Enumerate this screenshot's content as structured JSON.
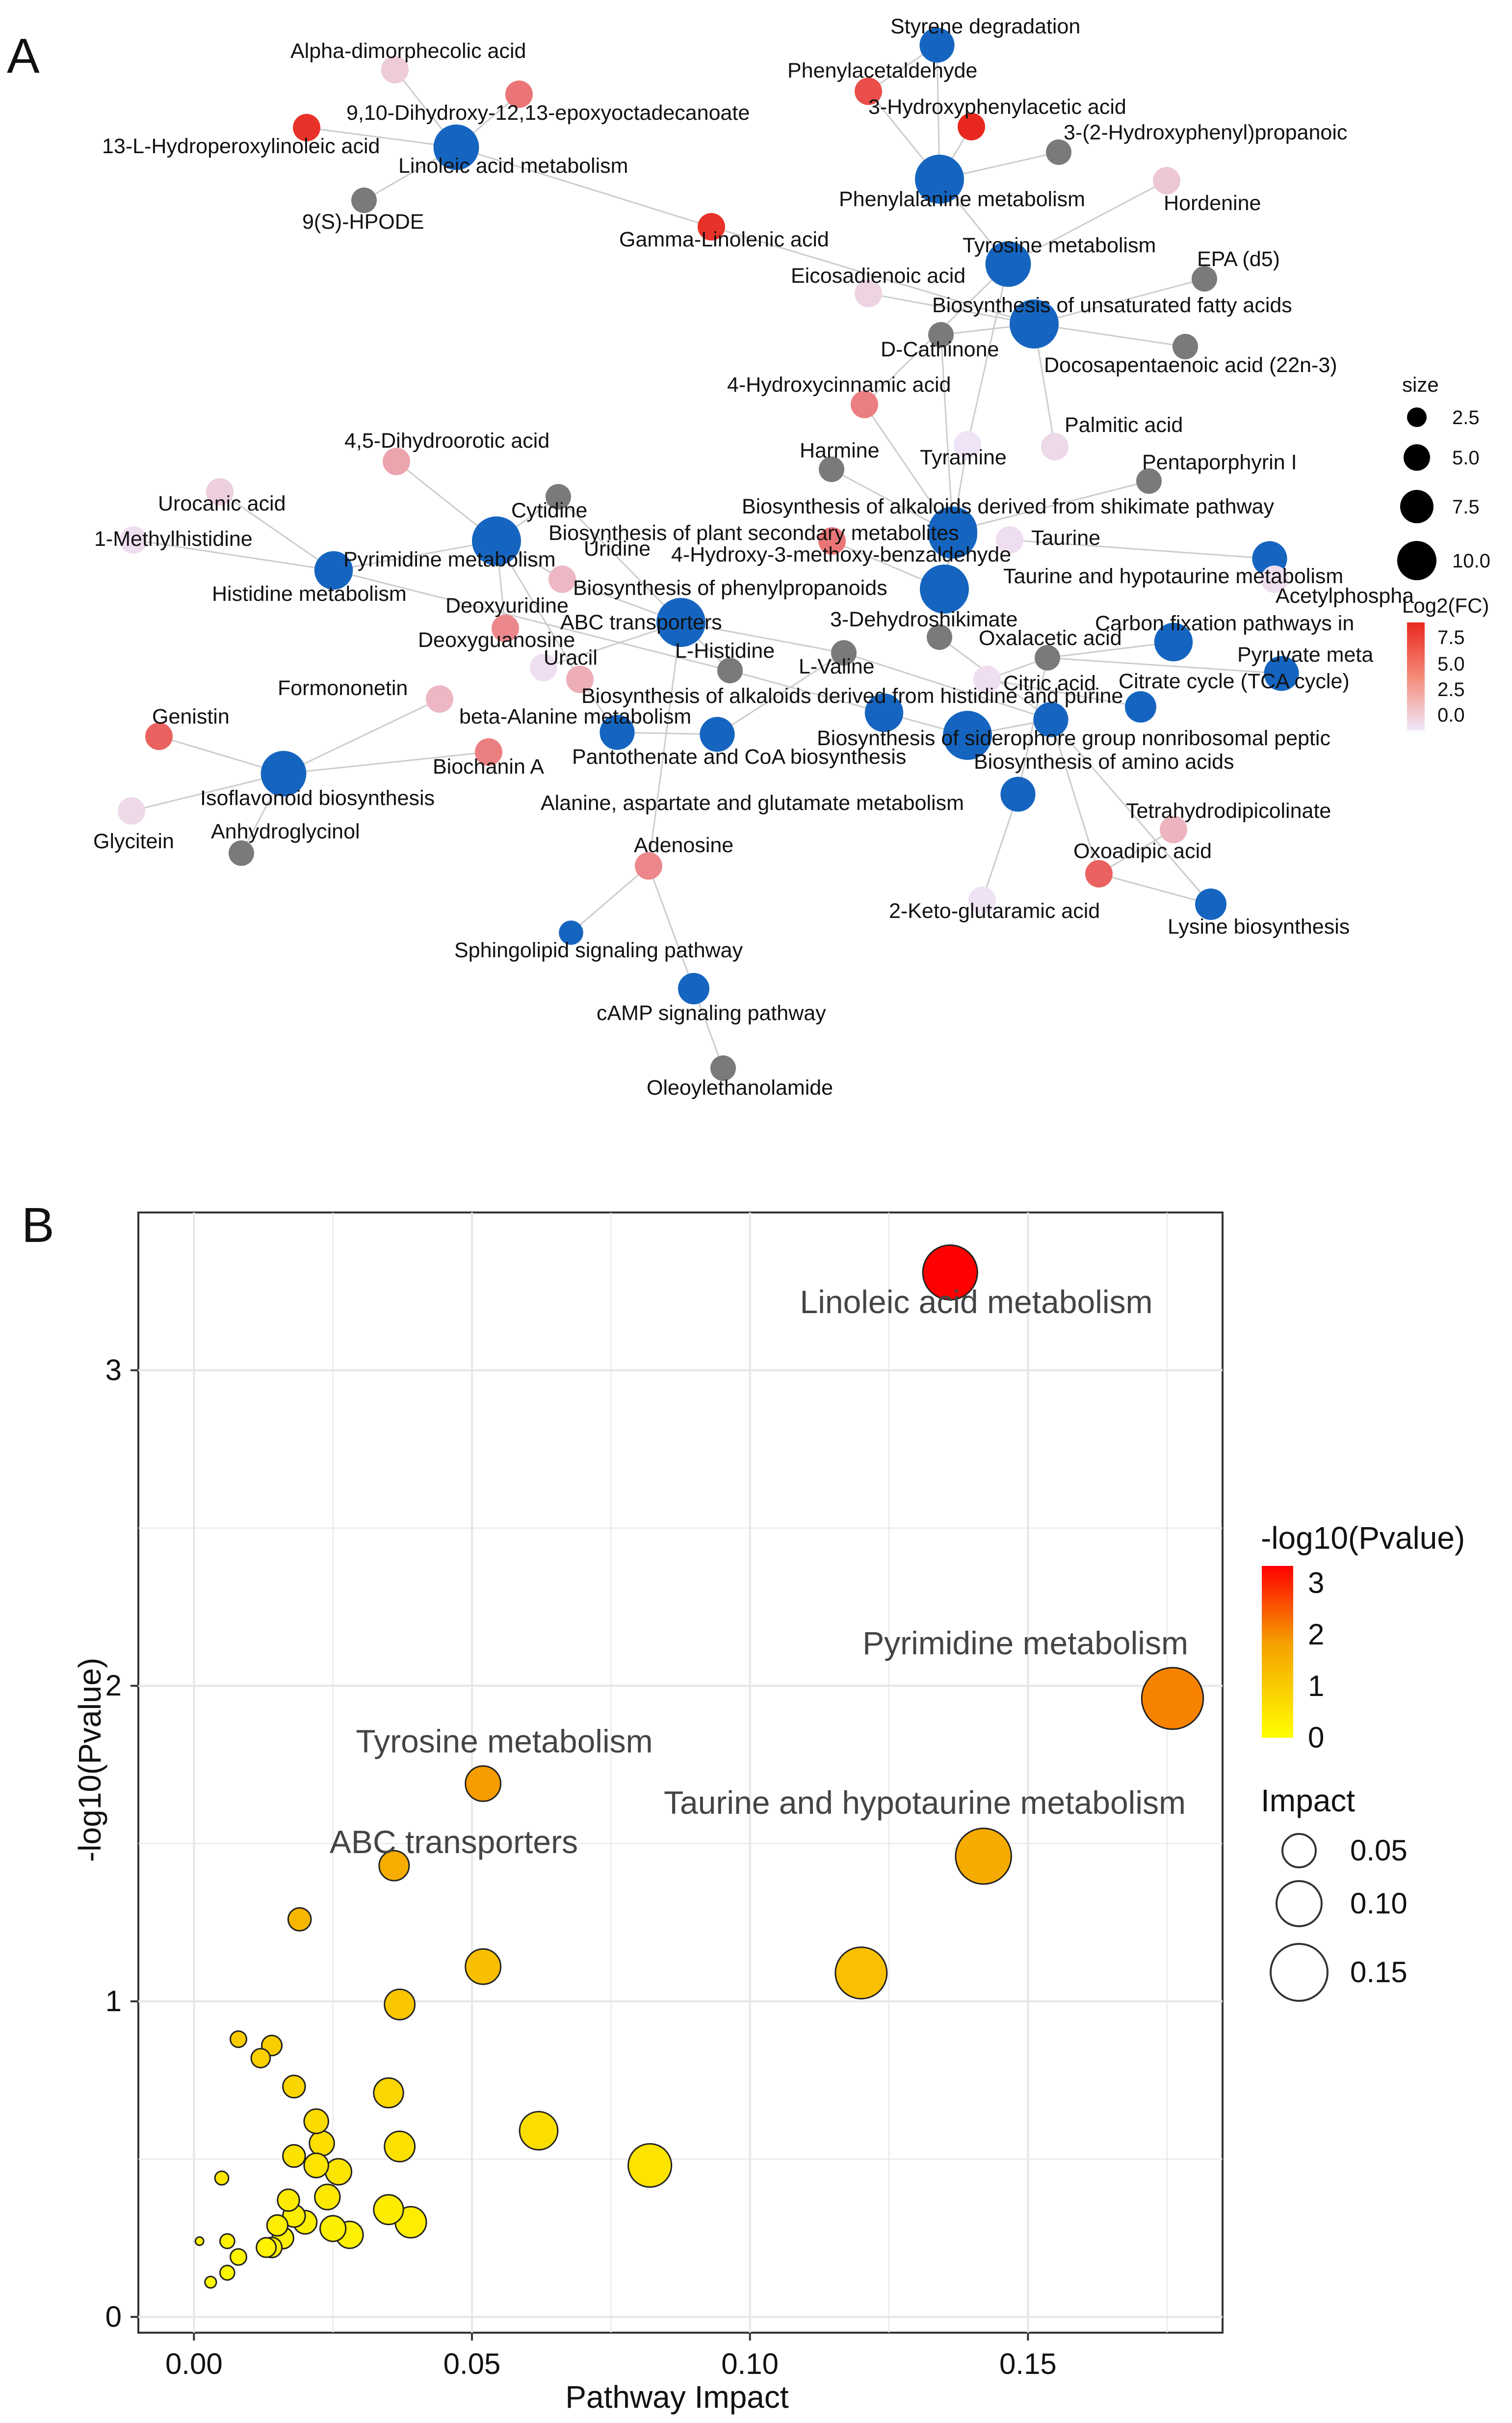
{
  "panel_a": {
    "letter": "A",
    "legend_size_title": "size",
    "legend_size_values": [
      "2.5",
      "5.0",
      "7.5",
      "10.0"
    ],
    "legend_color_title": "Log2(FC)",
    "legend_color_ticks": [
      "7.5",
      "5.0",
      "2.5",
      "0.0"
    ],
    "colors": {
      "pathway": "#1565C0",
      "neutral": "#7a7a7a",
      "fc_high": "#E8281E",
      "fc_low": "#EFE8FA",
      "edge": "#cccccc"
    },
    "nodes": [
      {
        "id": "styrene",
        "label": "Styrene degradation",
        "type": "pathway",
        "size": 6
      },
      {
        "id": "phenylacetaldehyde",
        "label": "Phenylacetaldehyde",
        "type": "metabolite",
        "fc": 7.5
      },
      {
        "id": "hydroxyphenylacetic",
        "label": "3-Hydroxyphenylacetic acid",
        "type": "metabolite",
        "fc": 9.5
      },
      {
        "id": "hydroxyphenylpropanoic",
        "label": "3-(2-Hydroxyphenyl)propanoic",
        "type": "neutral",
        "size": 4
      },
      {
        "id": "phenylalanine",
        "label": "Phenylalanine metabolism",
        "type": "pathway",
        "size": 10
      },
      {
        "id": "hordenine",
        "label": "Hordenine",
        "type": "metabolite",
        "fc": 1.2
      },
      {
        "id": "tyrosine",
        "label": "Tyrosine metabolism",
        "type": "pathway",
        "size": 9
      },
      {
        "id": "epa",
        "label": "EPA (d5)",
        "type": "neutral",
        "size": 4
      },
      {
        "id": "eicosadienoic",
        "label": "Eicosadienoic acid",
        "type": "metabolite",
        "fc": 0.6
      },
      {
        "id": "unsat_fa",
        "label": "Biosynthesis of unsaturated fatty acids",
        "type": "pathway",
        "size": 10
      },
      {
        "id": "dcathinone",
        "label": "D-Cathinone",
        "type": "neutral",
        "size": 4
      },
      {
        "id": "docosapentaenoic",
        "label": "Docosapentaenoic acid (22n-3)",
        "type": "neutral",
        "size": 4
      },
      {
        "id": "hydroxycinnamic",
        "label": "4-Hydroxycinnamic acid",
        "type": "metabolite",
        "fc": 5.0
      },
      {
        "id": "palmitic",
        "label": "Palmitic acid",
        "type": "metabolite",
        "fc": 0.3
      },
      {
        "id": "harmine",
        "label": "Harmine",
        "type": "neutral",
        "size": 4
      },
      {
        "id": "tyramine",
        "label": "Tyramine",
        "type": "metabolite",
        "fc": -0.3
      },
      {
        "id": "pentaporphyrin",
        "label": "Pentaporphyrin I",
        "type": "neutral",
        "size": 4
      },
      {
        "id": "alkaloid_shikimate",
        "label": "Biosynthesis of alkaloids derived from shikimate pathway",
        "type": "pathway",
        "size": 10
      },
      {
        "id": "taurine",
        "label": "Taurine",
        "type": "metabolite",
        "fc": 0.0
      },
      {
        "id": "taurine_metab",
        "label": "Taurine and hypotaurine metabolism",
        "type": "pathway",
        "size": 6
      },
      {
        "id": "acetylphosphate",
        "label": "Acetylphospha",
        "type": "metabolite",
        "fc": 0.0
      },
      {
        "id": "plant_secondary",
        "label": "Biosynthesis of plant secondary metabolites",
        "type": "pathway",
        "size": 10
      },
      {
        "id": "methoxybenzaldehyde",
        "label": "4-Hydroxy-3-methoxy-benzaldehyde",
        "type": "metabolite",
        "fc": 5.5
      },
      {
        "id": "phenylpropanoids",
        "label": "Biosynthesis of phenylpropanoids",
        "type": "pathway",
        "size": 10
      },
      {
        "id": "dehydroshikimate",
        "label": "3-Dehydroshikimate",
        "type": "neutral",
        "size": 4
      },
      {
        "id": "carbon_fixation",
        "label": "Carbon fixation pathways in",
        "type": "pathway",
        "size": 7
      },
      {
        "id": "oxalacetic",
        "label": "Oxalacetic acid",
        "type": "neutral",
        "size": 4
      },
      {
        "id": "pyruvate",
        "label": "Pyruvate meta",
        "type": "pathway",
        "size": 6
      },
      {
        "id": "citric",
        "label": "Citric acid",
        "type": "metabolite",
        "fc": 0.0
      },
      {
        "id": "tca",
        "label": "Citrate cycle (TCA cycle)",
        "type": "pathway",
        "size": 5
      },
      {
        "id": "alkaloid_histidine",
        "label": "Biosynthesis of alkaloids derived from histidine and purine",
        "type": "pathway",
        "size": 7
      },
      {
        "id": "siderophore",
        "label": "Biosynthesis of siderophore group nonribosomal peptic",
        "type": "pathway",
        "size": 10
      },
      {
        "id": "amino_acids",
        "label": "Biosynthesis of amino acids",
        "type": "pathway",
        "size": 6
      },
      {
        "id": "alanine",
        "label": "Alanine, aspartate and glutamate metabolism",
        "type": "pathway",
        "size": 6
      },
      {
        "id": "tetrahydrodipicolinate",
        "label": "Tetrahydrodipicolinate",
        "type": "metabolite",
        "fc": 2.2
      },
      {
        "id": "oxoadipic",
        "label": "Oxoadipic acid",
        "type": "metabolite",
        "fc": 6.5
      },
      {
        "id": "ketoglutaramic",
        "label": "2-Keto-glutaramic acid",
        "type": "metabolite",
        "fc": -0.2
      },
      {
        "id": "lysine",
        "label": "Lysine biosynthesis",
        "type": "pathway",
        "size": 5
      },
      {
        "id": "alpha_dimorphecolic",
        "label": "Alpha-dimorphecolic acid",
        "type": "metabolite",
        "fc": 1.0
      },
      {
        "id": "dihydroxy_epoxy",
        "label": "9,10-Dihydroxy-12,13-epoxyoctadecanoate",
        "type": "metabolite",
        "fc": 5.5
      },
      {
        "id": "hpode13",
        "label": "13-L-Hydroperoxylinoleic acid",
        "type": "metabolite",
        "fc": 9.0
      },
      {
        "id": "linoleic",
        "label": "Linoleic acid metabolism",
        "type": "pathway",
        "size": 9
      },
      {
        "id": "hpode9",
        "label": "9(S)-HPODE",
        "type": "neutral",
        "size": 4
      },
      {
        "id": "gamma_linolenic",
        "label": "Gamma-Linolenic acid",
        "type": "metabolite",
        "fc": 9.0
      },
      {
        "id": "dihydroorotic",
        "label": "4,5-Dihydroorotic acid",
        "type": "metabolite",
        "fc": 3.0
      },
      {
        "id": "urocanic",
        "label": "Urocanic acid",
        "type": "metabolite",
        "fc": 0.8
      },
      {
        "id": "cytidine",
        "label": "Cytidine",
        "type": "neutral",
        "size": 4
      },
      {
        "id": "methylhistidine",
        "label": "1-Methylhistidine",
        "type": "metabolite",
        "fc": 0.0
      },
      {
        "id": "pyrimidine",
        "label": "Pyrimidine metabolism",
        "type": "pathway",
        "size": 10
      },
      {
        "id": "uridine",
        "label": "Uridine",
        "type": "metabolite",
        "fc": 2.0
      },
      {
        "id": "histidine_metab",
        "label": "Histidine metabolism",
        "type": "pathway",
        "size": 7
      },
      {
        "id": "deoxyuridine",
        "label": "Deoxyuridine",
        "type": "metabolite",
        "fc": 4.5
      },
      {
        "id": "abc",
        "label": "ABC transporters",
        "type": "pathway",
        "size": 10
      },
      {
        "id": "deoxyguanosine",
        "label": "Deoxyguanosine",
        "type": "metabolite",
        "fc": 0.0
      },
      {
        "id": "uracil",
        "label": "Uracil",
        "type": "metabolite",
        "fc": 2.5
      },
      {
        "id": "lhistidine",
        "label": "L-Histidine",
        "type": "neutral",
        "size": 4
      },
      {
        "id": "lvaline",
        "label": "L-Valine",
        "type": "neutral",
        "size": 4
      },
      {
        "id": "formononetin",
        "label": "Formononetin",
        "type": "metabolite",
        "fc": 2.0
      },
      {
        "id": "beta_alanine",
        "label": "beta-Alanine metabolism",
        "type": "pathway",
        "size": 6
      },
      {
        "id": "pantothenate",
        "label": "Pantothenate and CoA biosynthesis",
        "type": "pathway",
        "size": 6
      },
      {
        "id": "genistin",
        "label": "Genistin",
        "type": "metabolite",
        "fc": 6.5
      },
      {
        "id": "biochanin",
        "label": "Biochanin A",
        "type": "metabolite",
        "fc": 5.0
      },
      {
        "id": "isoflavonoid",
        "label": "Isoflavonoid biosynthesis",
        "type": "pathway",
        "size": 9
      },
      {
        "id": "glycitein",
        "label": "Glycitein",
        "type": "metabolite",
        "fc": 0.3
      },
      {
        "id": "anhydroglycinol",
        "label": "Anhydroglycinol",
        "type": "neutral",
        "size": 4
      },
      {
        "id": "adenosine",
        "label": "Adenosine",
        "type": "metabolite",
        "fc": 4.5
      },
      {
        "id": "sphingolipid",
        "label": "Sphingolipid signaling pathway",
        "type": "pathway",
        "size": 3
      },
      {
        "id": "camp",
        "label": "cAMP signaling pathway",
        "type": "pathway",
        "size": 5
      },
      {
        "id": "oleoylethanolamide",
        "label": "Oleoylethanolamide",
        "type": "neutral",
        "size": 4
      }
    ],
    "edges": [
      [
        "styrene",
        "phenylacetaldehyde"
      ],
      [
        "styrene",
        "phenylalanine"
      ],
      [
        "phenylacetaldehyde",
        "phenylalanine"
      ],
      [
        "hydroxyphenylacetic",
        "phenylalanine"
      ],
      [
        "hydroxyphenylpropanoic",
        "phenylalanine"
      ],
      [
        "phenylalanine",
        "tyrosine"
      ],
      [
        "hordenine",
        "tyrosine"
      ],
      [
        "tyrosine",
        "tyramine"
      ],
      [
        "tyrosine",
        "hydroxycinnamic"
      ],
      [
        "eicosadienoic",
        "unsat_fa"
      ],
      [
        "epa",
        "unsat_fa"
      ],
      [
        "unsat_fa",
        "docosapentaenoic"
      ],
      [
        "unsat_fa",
        "palmitic"
      ],
      [
        "unsat_fa",
        "dcathinone"
      ],
      [
        "dcathinone",
        "alkaloid_shikimate"
      ],
      [
        "hydroxycinnamic",
        "plant_secondary"
      ],
      [
        "harmine",
        "plant_secondary"
      ],
      [
        "tyramine",
        "alkaloid_shikimate"
      ],
      [
        "pentaporphyrin",
        "alkaloid_shikimate"
      ],
      [
        "alkaloid_shikimate",
        "phenylpropanoids"
      ],
      [
        "taurine",
        "taurine_metab"
      ],
      [
        "taurine_metab",
        "acetylphosphate"
      ],
      [
        "methoxybenzaldehyde",
        "phenylpropanoids"
      ],
      [
        "plant_secondary",
        "phenylpropanoids"
      ],
      [
        "dehydroshikimate",
        "alkaloid_shikimate"
      ],
      [
        "dehydroshikimate",
        "amino_acids"
      ],
      [
        "carbon_fixation",
        "oxalacetic"
      ],
      [
        "pyruvate",
        "oxalacetic"
      ],
      [
        "oxalacetic",
        "citric"
      ],
      [
        "citric",
        "tca"
      ],
      [
        "oxalacetic",
        "alanine"
      ],
      [
        "alanine",
        "ketoglutaramic"
      ],
      [
        "amino_acids",
        "lvaline"
      ],
      [
        "amino_acids",
        "siderophore"
      ],
      [
        "siderophore",
        "alkaloid_histidine"
      ],
      [
        "lhistidine",
        "alkaloid_histidine"
      ],
      [
        "lhistidine",
        "histidine_metab"
      ],
      [
        "oxoadipic",
        "lysine"
      ],
      [
        "oxoadipic",
        "tetrahydrodipicolinate"
      ],
      [
        "oxoadipic",
        "amino_acids"
      ],
      [
        "lysine",
        "amino_acids"
      ],
      [
        "alpha_dimorphecolic",
        "linoleic"
      ],
      [
        "dihydroxy_epoxy",
        "linoleic"
      ],
      [
        "hpode13",
        "linoleic"
      ],
      [
        "hpode9",
        "linoleic"
      ],
      [
        "linoleic",
        "gamma_linolenic"
      ],
      [
        "dihydroorotic",
        "pyrimidine"
      ],
      [
        "cytidine",
        "pyrimidine"
      ],
      [
        "uridine",
        "pyrimidine"
      ],
      [
        "urocanic",
        "histidine_metab"
      ],
      [
        "methylhistidine",
        "histidine_metab"
      ],
      [
        "histidine_metab",
        "pyrimidine"
      ],
      [
        "deoxyuridine",
        "pyrimidine"
      ],
      [
        "deoxyguanosine",
        "abc"
      ],
      [
        "uracil",
        "pyrimidine"
      ],
      [
        "uracil",
        "beta_alanine"
      ],
      [
        "abc",
        "lhistidine"
      ],
      [
        "abc",
        "uridine"
      ],
      [
        "abc",
        "adenosine"
      ],
      [
        "abc",
        "lvaline"
      ],
      [
        "abc",
        "cytidine"
      ],
      [
        "lvaline",
        "pantothenate"
      ],
      [
        "beta_alanine",
        "pantothenate"
      ],
      [
        "formononetin",
        "isoflavonoid"
      ],
      [
        "genistin",
        "isoflavonoid"
      ],
      [
        "biochanin",
        "isoflavonoid"
      ],
      [
        "glycitein",
        "isoflavonoid"
      ],
      [
        "anhydroglycinol",
        "isoflavonoid"
      ],
      [
        "adenosine",
        "sphingolipid"
      ],
      [
        "adenosine",
        "camp"
      ],
      [
        "camp",
        "oleoylethanolamide"
      ],
      [
        "gamma_linolenic",
        "unsat_fa"
      ]
    ]
  },
  "panel_b": {
    "letter": "B",
    "chart_data": {
      "type": "scatter",
      "title": "",
      "xlabel": "Pathway Impact",
      "ylabel": "-log10(Pvalue)",
      "xlim": [
        -0.01,
        0.185
      ],
      "ylim": [
        -0.05,
        3.5
      ],
      "x_ticks": [
        "0.00",
        "0.05",
        "0.10",
        "0.15"
      ],
      "y_ticks": [
        "0",
        "1",
        "2",
        "3"
      ],
      "grid": true,
      "color_legend_title": "-log10(Pvalue)",
      "color_legend_ticks": [
        "3",
        "2",
        "1",
        "0"
      ],
      "size_legend_title": "Impact",
      "size_legend_values": [
        "0.05",
        "0.10",
        "0.15"
      ],
      "colors": {
        "low": "#FFFF00",
        "mid": "#F5A000",
        "high": "#FF0000"
      },
      "points": [
        {
          "impact": 0.136,
          "p": 3.31,
          "label": "Linoleic acid metabolism"
        },
        {
          "impact": 0.176,
          "p": 1.96,
          "label": "Pyrimidine metabolism"
        },
        {
          "impact": 0.052,
          "p": 1.69,
          "label": "Tyrosine metabolism"
        },
        {
          "impact": 0.142,
          "p": 1.46,
          "label": "Taurine and hypotaurine metabolism"
        },
        {
          "impact": 0.036,
          "p": 1.43,
          "label": "ABC transporters"
        },
        {
          "impact": 0.019,
          "p": 1.26,
          "label": ""
        },
        {
          "impact": 0.052,
          "p": 1.11,
          "label": ""
        },
        {
          "impact": 0.12,
          "p": 1.09,
          "label": ""
        },
        {
          "impact": 0.037,
          "p": 0.99,
          "label": ""
        },
        {
          "impact": 0.008,
          "p": 0.88,
          "label": ""
        },
        {
          "impact": 0.014,
          "p": 0.86,
          "label": ""
        },
        {
          "impact": 0.012,
          "p": 0.82,
          "label": ""
        },
        {
          "impact": 0.018,
          "p": 0.73,
          "label": ""
        },
        {
          "impact": 0.035,
          "p": 0.71,
          "label": ""
        },
        {
          "impact": 0.022,
          "p": 0.62,
          "label": ""
        },
        {
          "impact": 0.062,
          "p": 0.59,
          "label": ""
        },
        {
          "impact": 0.023,
          "p": 0.55,
          "label": ""
        },
        {
          "impact": 0.037,
          "p": 0.54,
          "label": ""
        },
        {
          "impact": 0.018,
          "p": 0.51,
          "label": ""
        },
        {
          "impact": 0.022,
          "p": 0.48,
          "label": ""
        },
        {
          "impact": 0.082,
          "p": 0.48,
          "label": ""
        },
        {
          "impact": 0.026,
          "p": 0.46,
          "label": ""
        },
        {
          "impact": 0.005,
          "p": 0.44,
          "label": ""
        },
        {
          "impact": 0.024,
          "p": 0.38,
          "label": ""
        },
        {
          "impact": 0.017,
          "p": 0.37,
          "label": ""
        },
        {
          "impact": 0.035,
          "p": 0.34,
          "label": ""
        },
        {
          "impact": 0.018,
          "p": 0.32,
          "label": ""
        },
        {
          "impact": 0.02,
          "p": 0.3,
          "label": ""
        },
        {
          "impact": 0.039,
          "p": 0.3,
          "label": ""
        },
        {
          "impact": 0.015,
          "p": 0.29,
          "label": ""
        },
        {
          "impact": 0.025,
          "p": 0.28,
          "label": ""
        },
        {
          "impact": 0.028,
          "p": 0.26,
          "label": ""
        },
        {
          "impact": 0.016,
          "p": 0.25,
          "label": ""
        },
        {
          "impact": 0.001,
          "p": 0.24,
          "label": ""
        },
        {
          "impact": 0.006,
          "p": 0.24,
          "label": ""
        },
        {
          "impact": 0.014,
          "p": 0.22,
          "label": ""
        },
        {
          "impact": 0.013,
          "p": 0.22,
          "label": ""
        },
        {
          "impact": 0.008,
          "p": 0.19,
          "label": ""
        },
        {
          "impact": 0.006,
          "p": 0.14,
          "label": ""
        },
        {
          "impact": 0.003,
          "p": 0.11,
          "label": ""
        }
      ]
    }
  }
}
